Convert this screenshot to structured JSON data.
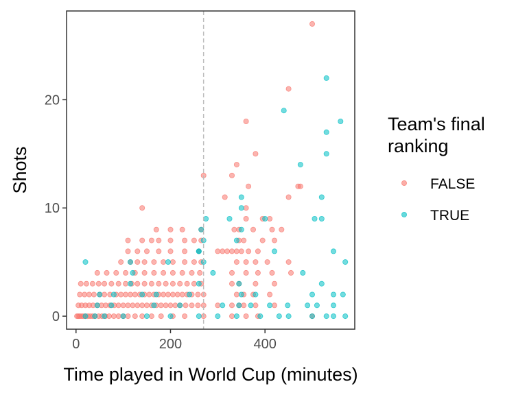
{
  "chart_data": {
    "type": "scatter",
    "title": "",
    "xlabel": "Time played in World Cup (minutes)",
    "ylabel": "Shots",
    "xlim": [
      -20,
      590
    ],
    "ylim": [
      -1.2,
      28.2
    ],
    "xticks": [
      0,
      200,
      400
    ],
    "yticks": [
      0,
      10,
      20
    ],
    "grid": false,
    "reference_line": {
      "x": 270,
      "style": "dashed",
      "color": "#bdbdbd"
    },
    "legend": {
      "title_lines": [
        "Team's final",
        "ranking"
      ],
      "position": "right"
    },
    "series": [
      {
        "name": "FALSE",
        "color": "#F8766D",
        "points": [
          [
            2,
            0
          ],
          [
            5,
            0
          ],
          [
            8,
            0
          ],
          [
            12,
            0
          ],
          [
            16,
            0
          ],
          [
            20,
            0
          ],
          [
            25,
            0
          ],
          [
            30,
            0
          ],
          [
            35,
            0
          ],
          [
            40,
            0
          ],
          [
            48,
            0
          ],
          [
            55,
            0
          ],
          [
            62,
            0
          ],
          [
            70,
            0
          ],
          [
            80,
            0
          ],
          [
            90,
            0
          ],
          [
            100,
            0
          ],
          [
            110,
            0
          ],
          [
            125,
            0
          ],
          [
            140,
            0
          ],
          [
            160,
            0
          ],
          [
            180,
            0
          ],
          [
            205,
            0
          ],
          [
            230,
            0
          ],
          [
            270,
            0
          ],
          [
            330,
            0
          ],
          [
            360,
            0
          ],
          [
            385,
            0
          ],
          [
            500,
            0
          ],
          [
            5,
            1
          ],
          [
            12,
            1
          ],
          [
            20,
            1
          ],
          [
            28,
            1
          ],
          [
            36,
            1
          ],
          [
            45,
            1
          ],
          [
            54,
            1
          ],
          [
            63,
            1
          ],
          [
            72,
            1
          ],
          [
            81,
            1
          ],
          [
            90,
            1
          ],
          [
            100,
            1
          ],
          [
            110,
            1
          ],
          [
            120,
            1
          ],
          [
            130,
            1
          ],
          [
            140,
            1
          ],
          [
            150,
            1
          ],
          [
            160,
            1
          ],
          [
            170,
            1
          ],
          [
            180,
            1
          ],
          [
            190,
            1
          ],
          [
            200,
            1
          ],
          [
            210,
            1
          ],
          [
            220,
            1
          ],
          [
            232,
            1
          ],
          [
            245,
            1
          ],
          [
            258,
            1
          ],
          [
            270,
            1
          ],
          [
            300,
            1
          ],
          [
            330,
            1
          ],
          [
            345,
            1
          ],
          [
            355,
            1
          ],
          [
            380,
            1
          ],
          [
            420,
            1
          ],
          [
            8,
            2
          ],
          [
            18,
            2
          ],
          [
            28,
            2
          ],
          [
            38,
            2
          ],
          [
            50,
            2
          ],
          [
            60,
            2
          ],
          [
            72,
            2
          ],
          [
            85,
            2
          ],
          [
            95,
            2
          ],
          [
            105,
            2
          ],
          [
            115,
            2
          ],
          [
            125,
            2
          ],
          [
            135,
            2
          ],
          [
            145,
            2
          ],
          [
            155,
            2
          ],
          [
            165,
            2
          ],
          [
            175,
            2
          ],
          [
            185,
            2
          ],
          [
            195,
            2
          ],
          [
            205,
            2
          ],
          [
            215,
            2
          ],
          [
            225,
            2
          ],
          [
            235,
            2
          ],
          [
            245,
            2
          ],
          [
            258,
            2
          ],
          [
            270,
            2
          ],
          [
            340,
            2
          ],
          [
            355,
            2
          ],
          [
            375,
            2
          ],
          [
            410,
            2
          ],
          [
            10,
            3
          ],
          [
            22,
            3
          ],
          [
            35,
            3
          ],
          [
            48,
            3
          ],
          [
            60,
            3
          ],
          [
            75,
            3
          ],
          [
            90,
            3
          ],
          [
            105,
            3
          ],
          [
            118,
            3
          ],
          [
            130,
            3
          ],
          [
            145,
            3
          ],
          [
            160,
            3
          ],
          [
            175,
            3
          ],
          [
            190,
            3
          ],
          [
            205,
            3
          ],
          [
            220,
            3
          ],
          [
            235,
            3
          ],
          [
            250,
            3
          ],
          [
            265,
            3
          ],
          [
            330,
            3
          ],
          [
            345,
            3
          ],
          [
            380,
            3
          ],
          [
            420,
            3
          ],
          [
            45,
            4
          ],
          [
            65,
            4
          ],
          [
            85,
            4
          ],
          [
            105,
            4
          ],
          [
            125,
            4
          ],
          [
            145,
            4
          ],
          [
            165,
            4
          ],
          [
            185,
            4
          ],
          [
            205,
            4
          ],
          [
            225,
            4
          ],
          [
            245,
            4
          ],
          [
            262,
            4
          ],
          [
            330,
            4
          ],
          [
            360,
            4
          ],
          [
            385,
            4
          ],
          [
            415,
            4
          ],
          [
            455,
            4
          ],
          [
            95,
            5
          ],
          [
            115,
            5
          ],
          [
            130,
            5
          ],
          [
            145,
            5
          ],
          [
            165,
            5
          ],
          [
            185,
            5
          ],
          [
            205,
            5
          ],
          [
            230,
            5
          ],
          [
            250,
            5
          ],
          [
            265,
            5
          ],
          [
            340,
            5
          ],
          [
            360,
            5
          ],
          [
            380,
            5
          ],
          [
            405,
            5
          ],
          [
            450,
            5
          ],
          [
            110,
            6
          ],
          [
            130,
            6
          ],
          [
            150,
            6
          ],
          [
            175,
            6
          ],
          [
            200,
            6
          ],
          [
            230,
            6
          ],
          [
            260,
            6
          ],
          [
            300,
            6
          ],
          [
            310,
            6
          ],
          [
            320,
            6
          ],
          [
            330,
            6
          ],
          [
            340,
            6
          ],
          [
            350,
            6
          ],
          [
            365,
            6
          ],
          [
            385,
            6
          ],
          [
            110,
            7
          ],
          [
            140,
            7
          ],
          [
            160,
            7
          ],
          [
            175,
            7
          ],
          [
            200,
            7
          ],
          [
            230,
            7
          ],
          [
            250,
            7
          ],
          [
            265,
            7
          ],
          [
            345,
            7
          ],
          [
            355,
            7
          ],
          [
            395,
            7
          ],
          [
            420,
            7
          ],
          [
            170,
            8
          ],
          [
            200,
            8
          ],
          [
            225,
            8
          ],
          [
            265,
            8
          ],
          [
            335,
            8
          ],
          [
            345,
            8
          ],
          [
            375,
            8
          ],
          [
            415,
            8
          ],
          [
            435,
            8
          ],
          [
            140,
            10
          ],
          [
            360,
            10
          ],
          [
            395,
            9
          ],
          [
            410,
            9
          ],
          [
            360,
            9
          ],
          [
            365,
            12
          ],
          [
            270,
            13
          ],
          [
            330,
            13
          ],
          [
            315,
            11
          ],
          [
            450,
            11
          ],
          [
            340,
            14
          ],
          [
            470,
            12
          ],
          [
            380,
            15
          ],
          [
            475,
            12
          ],
          [
            360,
            18
          ],
          [
            450,
            21
          ],
          [
            500,
            27
          ]
        ]
      },
      {
        "name": "TRUE",
        "color": "#00BFC4",
        "points": [
          [
            20,
            0
          ],
          [
            40,
            0
          ],
          [
            60,
            0
          ],
          [
            100,
            0
          ],
          [
            150,
            0
          ],
          [
            200,
            0
          ],
          [
            260,
            0
          ],
          [
            300,
            0
          ],
          [
            340,
            0
          ],
          [
            390,
            0
          ],
          [
            430,
            0
          ],
          [
            450,
            0
          ],
          [
            500,
            0
          ],
          [
            530,
            0
          ],
          [
            545,
            0
          ],
          [
            570,
            0
          ],
          [
            45,
            1
          ],
          [
            75,
            1
          ],
          [
            165,
            1
          ],
          [
            220,
            1
          ],
          [
            310,
            1
          ],
          [
            345,
            1
          ],
          [
            370,
            1
          ],
          [
            410,
            1
          ],
          [
            448,
            1
          ],
          [
            490,
            1
          ],
          [
            510,
            1
          ],
          [
            545,
            1
          ],
          [
            50,
            2
          ],
          [
            80,
            2
          ],
          [
            140,
            2
          ],
          [
            170,
            2
          ],
          [
            240,
            2
          ],
          [
            350,
            2
          ],
          [
            380,
            2
          ],
          [
            500,
            2
          ],
          [
            545,
            2
          ],
          [
            565,
            2
          ],
          [
            115,
            3
          ],
          [
            260,
            3
          ],
          [
            345,
            3
          ],
          [
            520,
            3
          ],
          [
            120,
            4
          ],
          [
            290,
            4
          ],
          [
            480,
            4
          ],
          [
            20,
            5
          ],
          [
            115,
            5
          ],
          [
            195,
            5
          ],
          [
            270,
            5
          ],
          [
            570,
            5
          ],
          [
            260,
            6
          ],
          [
            420,
            6
          ],
          [
            545,
            6
          ],
          [
            270,
            7
          ],
          [
            340,
            7
          ],
          [
            265,
            8
          ],
          [
            350,
            8
          ],
          [
            260,
            6
          ],
          [
            275,
            9
          ],
          [
            325,
            9
          ],
          [
            400,
            9
          ],
          [
            505,
            9
          ],
          [
            520,
            9
          ],
          [
            350,
            10
          ],
          [
            520,
            11
          ],
          [
            350,
            11
          ],
          [
            475,
            14
          ],
          [
            530,
            15
          ],
          [
            530,
            17
          ],
          [
            560,
            18
          ],
          [
            440,
            19
          ],
          [
            530,
            22
          ]
        ]
      }
    ]
  }
}
